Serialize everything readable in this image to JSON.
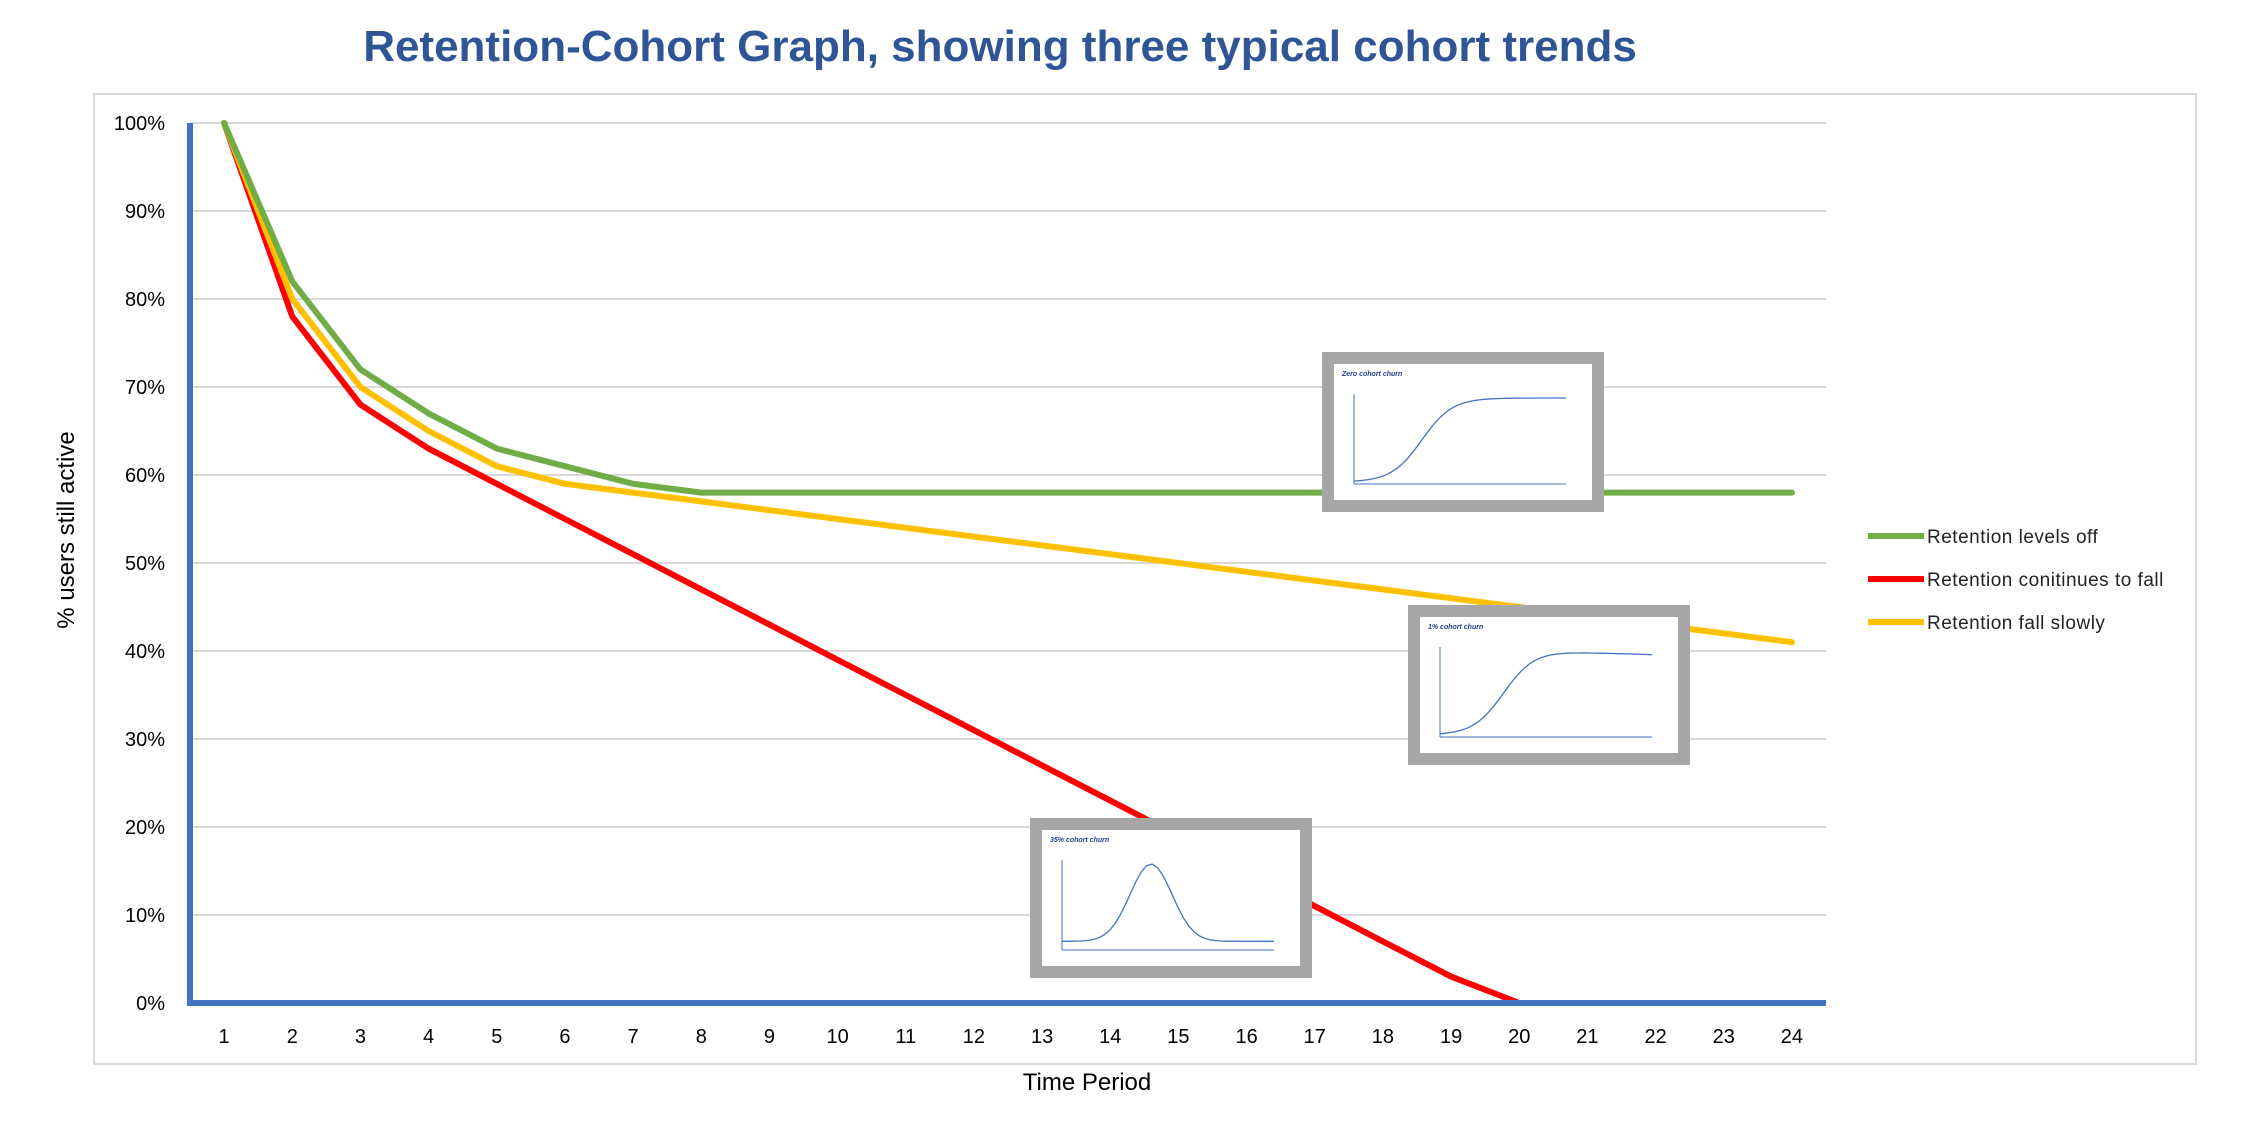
{
  "chart_data": {
    "type": "line",
    "title": "Retention-Cohort Graph, showing three typical cohort trends",
    "xlabel": "Time Period",
    "ylabel": "% users still active",
    "categories": [
      "1",
      "2",
      "3",
      "4",
      "5",
      "6",
      "7",
      "8",
      "9",
      "10",
      "11",
      "12",
      "13",
      "14",
      "15",
      "16",
      "17",
      "18",
      "19",
      "20",
      "21",
      "22",
      "23",
      "24"
    ],
    "yticks": [
      "0%",
      "10%",
      "20%",
      "30%",
      "40%",
      "50%",
      "60%",
      "70%",
      "80%",
      "90%",
      "100%"
    ],
    "ylim": [
      0,
      100
    ],
    "grid": true,
    "legend_position": "right",
    "series": [
      {
        "name": "Retention levels off",
        "color": "#70ad47",
        "values": [
          100,
          82,
          72,
          67,
          63,
          61,
          59,
          58,
          58,
          58,
          58,
          58,
          58,
          58,
          58,
          58,
          58,
          58,
          58,
          58,
          58,
          58,
          58,
          58
        ]
      },
      {
        "name": "Retention conitinues to fall",
        "color": "#ff0000",
        "values": [
          100,
          78,
          68,
          63,
          59,
          55,
          51,
          47,
          43,
          39,
          35,
          31,
          27,
          23,
          19,
          15,
          11,
          7,
          3,
          0,
          0,
          0,
          0,
          0
        ]
      },
      {
        "name": "Retention fall slowly",
        "color": "#ffc000",
        "values": [
          100,
          80,
          70,
          65,
          61,
          59,
          58,
          57,
          56,
          55,
          54,
          53,
          52,
          51,
          50,
          49,
          48,
          47,
          46,
          45,
          44,
          43,
          42,
          41
        ]
      }
    ],
    "insets": [
      {
        "title": "Zero cohort churn",
        "shape": "rise-plateau"
      },
      {
        "title": "1% cohort churn",
        "shape": "rise-slow-decline"
      },
      {
        "title": "35% cohort churn",
        "shape": "peak"
      }
    ],
    "colors": {
      "title": "#2f5597",
      "axis": "#4472c4",
      "grid": "#d9d9d9",
      "inset_frame": "#a6a6a6"
    }
  }
}
